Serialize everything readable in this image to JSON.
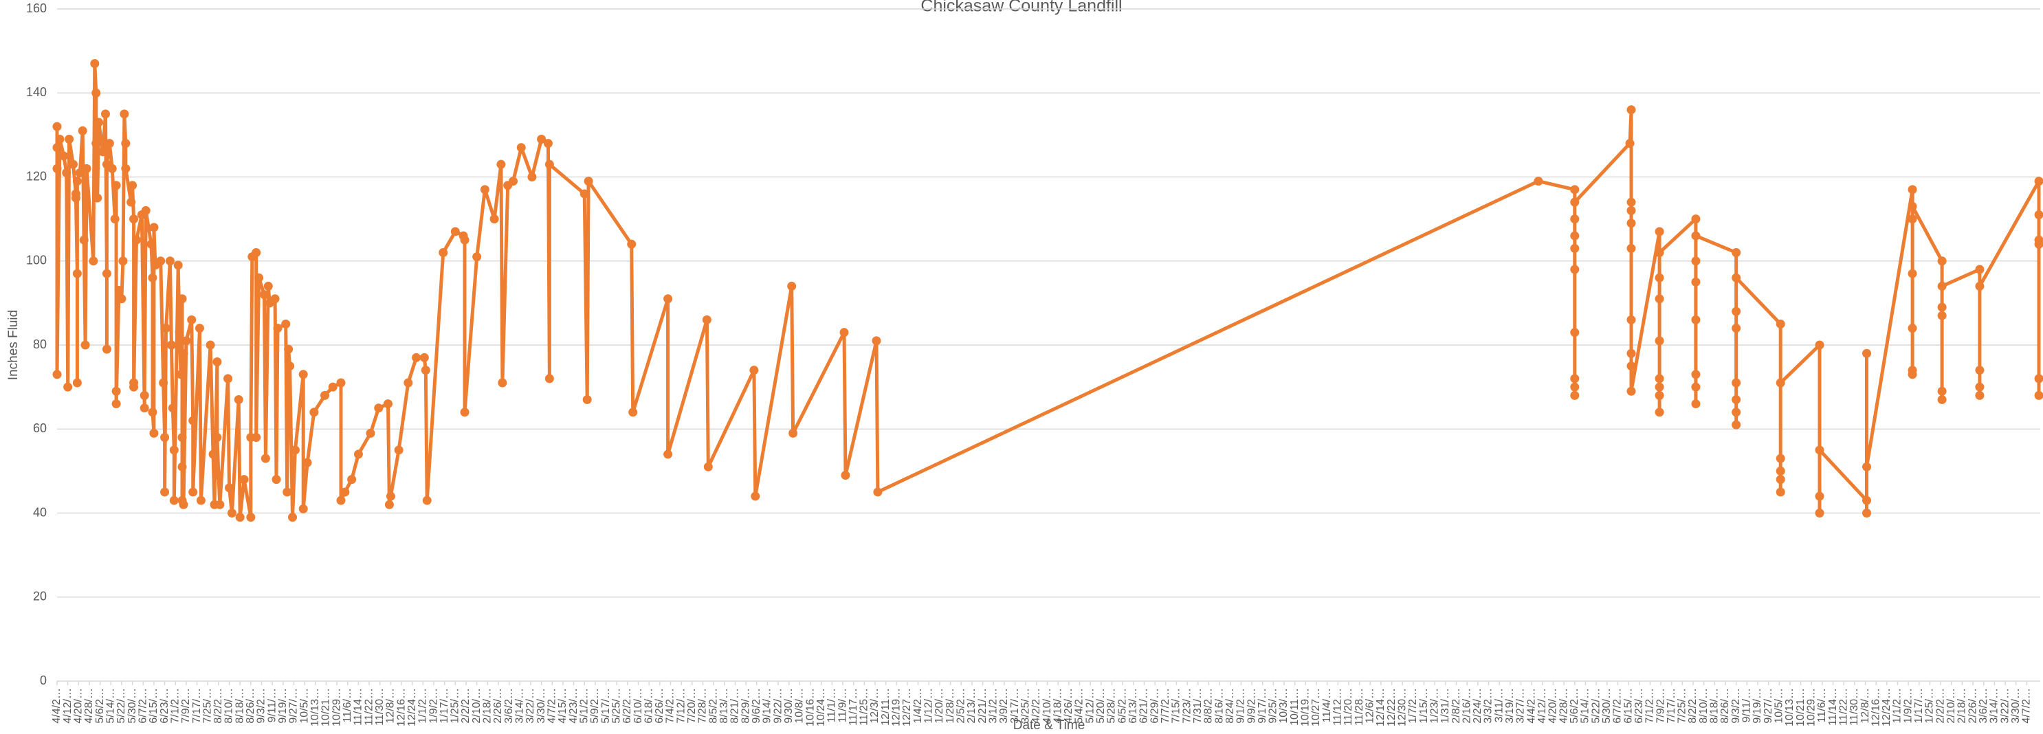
{
  "chart_data": {
    "type": "line",
    "title": "Chickasaw County Landfill",
    "y_label": "Inches Fluid",
    "x_label": "Date & Time",
    "color": "#ed7d31",
    "grid": true,
    "ylim": [
      0,
      160
    ],
    "yticks": [
      0,
      20,
      40,
      60,
      80,
      100,
      120,
      140,
      160
    ],
    "xlim": [
      0,
      1474
    ],
    "xticks": [
      {
        "value": 0,
        "label": "4/4/2…"
      },
      {
        "value": 8,
        "label": "4/12/…"
      },
      {
        "value": 16,
        "label": "4/20/…"
      },
      {
        "value": 24,
        "label": "4/28/…"
      },
      {
        "value": 32,
        "label": "5/6/2…"
      },
      {
        "value": 40,
        "label": "5/14/…"
      },
      {
        "value": 48,
        "label": "5/22/…"
      },
      {
        "value": 56,
        "label": "5/30/…"
      },
      {
        "value": 64,
        "label": "6/7/2…"
      },
      {
        "value": 72,
        "label": "6/15/…"
      },
      {
        "value": 80,
        "label": "6/23/…"
      },
      {
        "value": 88,
        "label": "7/1/2…"
      },
      {
        "value": 96,
        "label": "7/9/2…"
      },
      {
        "value": 104,
        "label": "7/17/…"
      },
      {
        "value": 112,
        "label": "7/25/…"
      },
      {
        "value": 120,
        "label": "8/2/2…"
      },
      {
        "value": 128,
        "label": "8/10/…"
      },
      {
        "value": 136,
        "label": "8/18/…"
      },
      {
        "value": 144,
        "label": "8/26/…"
      },
      {
        "value": 152,
        "label": "9/3/2…"
      },
      {
        "value": 160,
        "label": "9/11/…"
      },
      {
        "value": 168,
        "label": "9/19/…"
      },
      {
        "value": 176,
        "label": "9/27/…"
      },
      {
        "value": 184,
        "label": "10/5/…"
      },
      {
        "value": 192,
        "label": "10/13…"
      },
      {
        "value": 200,
        "label": "10/21…"
      },
      {
        "value": 208,
        "label": "10/29…"
      },
      {
        "value": 216,
        "label": "11/6/…"
      },
      {
        "value": 224,
        "label": "11/14…"
      },
      {
        "value": 232,
        "label": "11/22…"
      },
      {
        "value": 240,
        "label": "11/30…"
      },
      {
        "value": 248,
        "label": "12/8/…"
      },
      {
        "value": 256,
        "label": "12/16…"
      },
      {
        "value": 264,
        "label": "12/24…"
      },
      {
        "value": 272,
        "label": "1/1/2…"
      },
      {
        "value": 280,
        "label": "1/9/2…"
      },
      {
        "value": 288,
        "label": "1/17/…"
      },
      {
        "value": 296,
        "label": "1/25/…"
      },
      {
        "value": 304,
        "label": "2/2/2…"
      },
      {
        "value": 312,
        "label": "2/10/…"
      },
      {
        "value": 320,
        "label": "2/18/…"
      },
      {
        "value": 328,
        "label": "2/26/…"
      },
      {
        "value": 336,
        "label": "3/6/2…"
      },
      {
        "value": 344,
        "label": "3/14/…"
      },
      {
        "value": 352,
        "label": "3/22/…"
      },
      {
        "value": 360,
        "label": "3/30/…"
      },
      {
        "value": 368,
        "label": "4/7/2…"
      },
      {
        "value": 376,
        "label": "4/15/…"
      },
      {
        "value": 384,
        "label": "4/23/…"
      },
      {
        "value": 392,
        "label": "5/1/2…"
      },
      {
        "value": 400,
        "label": "5/9/2…"
      },
      {
        "value": 408,
        "label": "5/17/…"
      },
      {
        "value": 416,
        "label": "5/25/…"
      },
      {
        "value": 424,
        "label": "6/2/2…"
      },
      {
        "value": 432,
        "label": "6/10/…"
      },
      {
        "value": 440,
        "label": "6/18/…"
      },
      {
        "value": 448,
        "label": "6/26/…"
      },
      {
        "value": 456,
        "label": "7/4/2…"
      },
      {
        "value": 464,
        "label": "7/12/…"
      },
      {
        "value": 472,
        "label": "7/20/…"
      },
      {
        "value": 480,
        "label": "7/28/…"
      },
      {
        "value": 488,
        "label": "8/5/2…"
      },
      {
        "value": 496,
        "label": "8/13/…"
      },
      {
        "value": 504,
        "label": "8/21/…"
      },
      {
        "value": 512,
        "label": "8/29/…"
      },
      {
        "value": 520,
        "label": "9/6/2…"
      },
      {
        "value": 528,
        "label": "9/14/…"
      },
      {
        "value": 536,
        "label": "9/22/…"
      },
      {
        "value": 544,
        "label": "9/30/…"
      },
      {
        "value": 552,
        "label": "10/8/…"
      },
      {
        "value": 560,
        "label": "10/16…"
      },
      {
        "value": 568,
        "label": "10/24…"
      },
      {
        "value": 576,
        "label": "11/1/…"
      },
      {
        "value": 584,
        "label": "11/9/…"
      },
      {
        "value": 592,
        "label": "11/17…"
      },
      {
        "value": 600,
        "label": "11/25…"
      },
      {
        "value": 608,
        "label": "12/3/…"
      },
      {
        "value": 616,
        "label": "12/11…"
      },
      {
        "value": 624,
        "label": "12/19…"
      },
      {
        "value": 632,
        "label": "12/27…"
      },
      {
        "value": 640,
        "label": "1/4/2…"
      },
      {
        "value": 648,
        "label": "1/12/…"
      },
      {
        "value": 656,
        "label": "1/20/…"
      },
      {
        "value": 664,
        "label": "1/28/…"
      },
      {
        "value": 672,
        "label": "2/5/2…"
      },
      {
        "value": 680,
        "label": "2/13/…"
      },
      {
        "value": 688,
        "label": "2/21/…"
      },
      {
        "value": 696,
        "label": "3/1/2…"
      },
      {
        "value": 704,
        "label": "3/9/2…"
      },
      {
        "value": 712,
        "label": "3/17/…"
      },
      {
        "value": 720,
        "label": "3/25/…"
      },
      {
        "value": 728,
        "label": "4/2/2…"
      },
      {
        "value": 736,
        "label": "4/10/…"
      },
      {
        "value": 744,
        "label": "4/18/…"
      },
      {
        "value": 752,
        "label": "4/26/…"
      },
      {
        "value": 760,
        "label": "5/4/2…"
      },
      {
        "value": 768,
        "label": "5/12/…"
      },
      {
        "value": 776,
        "label": "5/20/…"
      },
      {
        "value": 784,
        "label": "5/28/…"
      },
      {
        "value": 792,
        "label": "6/5/2…"
      },
      {
        "value": 800,
        "label": "6/13/…"
      },
      {
        "value": 808,
        "label": "6/21/…"
      },
      {
        "value": 816,
        "label": "6/29/…"
      },
      {
        "value": 824,
        "label": "7/7/2…"
      },
      {
        "value": 832,
        "label": "7/15/…"
      },
      {
        "value": 840,
        "label": "7/23/…"
      },
      {
        "value": 848,
        "label": "7/31/…"
      },
      {
        "value": 856,
        "label": "8/8/2…"
      },
      {
        "value": 864,
        "label": "8/16/…"
      },
      {
        "value": 872,
        "label": "8/24/…"
      },
      {
        "value": 880,
        "label": "9/1/2…"
      },
      {
        "value": 888,
        "label": "9/9/2…"
      },
      {
        "value": 896,
        "label": "9/17/…"
      },
      {
        "value": 904,
        "label": "9/25/…"
      },
      {
        "value": 912,
        "label": "10/3/…"
      },
      {
        "value": 920,
        "label": "10/11…"
      },
      {
        "value": 928,
        "label": "10/19…"
      },
      {
        "value": 936,
        "label": "10/27…"
      },
      {
        "value": 944,
        "label": "11/4/…"
      },
      {
        "value": 952,
        "label": "11/12…"
      },
      {
        "value": 960,
        "label": "11/20…"
      },
      {
        "value": 968,
        "label": "11/28…"
      },
      {
        "value": 976,
        "label": "12/6/…"
      },
      {
        "value": 984,
        "label": "12/14…"
      },
      {
        "value": 992,
        "label": "12/22…"
      },
      {
        "value": 1000,
        "label": "12/30…"
      },
      {
        "value": 1008,
        "label": "1/7/2…"
      },
      {
        "value": 1016,
        "label": "1/15/…"
      },
      {
        "value": 1024,
        "label": "1/23/…"
      },
      {
        "value": 1032,
        "label": "1/31/…"
      },
      {
        "value": 1040,
        "label": "2/8/2…"
      },
      {
        "value": 1048,
        "label": "2/16/…"
      },
      {
        "value": 1056,
        "label": "2/24/…"
      },
      {
        "value": 1064,
        "label": "3/3/2…"
      },
      {
        "value": 1072,
        "label": "3/11/…"
      },
      {
        "value": 1080,
        "label": "3/19/…"
      },
      {
        "value": 1088,
        "label": "3/27/…"
      },
      {
        "value": 1096,
        "label": "4/4/2…"
      },
      {
        "value": 1104,
        "label": "4/12/…"
      },
      {
        "value": 1112,
        "label": "4/20/…"
      },
      {
        "value": 1120,
        "label": "4/28/…"
      },
      {
        "value": 1128,
        "label": "5/6/2…"
      },
      {
        "value": 1136,
        "label": "5/14/…"
      },
      {
        "value": 1144,
        "label": "5/22/…"
      },
      {
        "value": 1152,
        "label": "5/30/…"
      },
      {
        "value": 1160,
        "label": "6/7/2…"
      },
      {
        "value": 1168,
        "label": "6/15/…"
      },
      {
        "value": 1176,
        "label": "6/23/…"
      },
      {
        "value": 1184,
        "label": "7/1/2…"
      },
      {
        "value": 1192,
        "label": "7/9/2…"
      },
      {
        "value": 1200,
        "label": "7/17/…"
      },
      {
        "value": 1208,
        "label": "7/25/…"
      },
      {
        "value": 1216,
        "label": "8/2/2…"
      },
      {
        "value": 1224,
        "label": "8/10/…"
      },
      {
        "value": 1232,
        "label": "8/18/…"
      },
      {
        "value": 1240,
        "label": "8/26/…"
      },
      {
        "value": 1248,
        "label": "9/3/2…"
      },
      {
        "value": 1256,
        "label": "9/11/…"
      },
      {
        "value": 1264,
        "label": "9/19/…"
      },
      {
        "value": 1272,
        "label": "9/27/…"
      },
      {
        "value": 1280,
        "label": "10/5/…"
      },
      {
        "value": 1288,
        "label": "10/13…"
      },
      {
        "value": 1296,
        "label": "10/21…"
      },
      {
        "value": 1304,
        "label": "10/29…"
      },
      {
        "value": 1312,
        "label": "11/6/…"
      },
      {
        "value": 1320,
        "label": "11/14…"
      },
      {
        "value": 1328,
        "label": "11/22…"
      },
      {
        "value": 1336,
        "label": "11/30…"
      },
      {
        "value": 1344,
        "label": "12/8/…"
      },
      {
        "value": 1352,
        "label": "12/16…"
      },
      {
        "value": 1360,
        "label": "12/24…"
      },
      {
        "value": 1368,
        "label": "1/1/2…"
      },
      {
        "value": 1376,
        "label": "1/9/2…"
      },
      {
        "value": 1384,
        "label": "1/17/…"
      },
      {
        "value": 1392,
        "label": "1/25/…"
      },
      {
        "value": 1400,
        "label": "2/2/2…"
      },
      {
        "value": 1408,
        "label": "2/10/…"
      },
      {
        "value": 1416,
        "label": "2/18/…"
      },
      {
        "value": 1424,
        "label": "2/26/…"
      },
      {
        "value": 1432,
        "label": "3/6/2…"
      },
      {
        "value": 1440,
        "label": "3/14/…"
      },
      {
        "value": 1448,
        "label": "3/22/…"
      },
      {
        "value": 1456,
        "label": "3/30/…"
      },
      {
        "value": 1464,
        "label": "4/7/2…"
      }
    ],
    "x": [
      0,
      0,
      0,
      0,
      2,
      5,
      7,
      8,
      9,
      12,
      14,
      14,
      15,
      15,
      15,
      17,
      19,
      20,
      21,
      22,
      27,
      28,
      29,
      29,
      30,
      31,
      34,
      36,
      37,
      37,
      37,
      39,
      41,
      43,
      44,
      44,
      44,
      46,
      48,
      49,
      50,
      51,
      51,
      55,
      56,
      57,
      57,
      57,
      59,
      63,
      65,
      65,
      66,
      70,
      71,
      71,
      72,
      72,
      73,
      77,
      79,
      80,
      80,
      81,
      84,
      85,
      86,
      87,
      87,
      90,
      91,
      92,
      93,
      93,
      93,
      93,
      94,
      94,
      96,
      100,
      101,
      101,
      106,
      107,
      114,
      116,
      117,
      119,
      119,
      120,
      121,
      127,
      128,
      130,
      135,
      136,
      139,
      144,
      144,
      145,
      148,
      148,
      150,
      154,
      155,
      157,
      158,
      162,
      163,
      164,
      170,
      171,
      172,
      173,
      175,
      177,
      183,
      183,
      186,
      191,
      199,
      205,
      211,
      211,
      214,
      219,
      224,
      233,
      239,
      246,
      247,
      248,
      254,
      261,
      267,
      273,
      274,
      275,
      287,
      296,
      302,
      303,
      303,
      312,
      318,
      325,
      330,
      331,
      335,
      339,
      345,
      353,
      360,
      365,
      366,
      366,
      392,
      394,
      395,
      427,
      428,
      454,
      454,
      483,
      484,
      518,
      519,
      546,
      547,
      585,
      586,
      609,
      610,
      1101,
      1128,
      1128,
      1128,
      1128,
      1128,
      1128,
      1128,
      1128,
      1128,
      1128,
      1169,
      1170,
      1170,
      1170,
      1170,
      1170,
      1170,
      1170,
      1170,
      1170,
      1191,
      1191,
      1191,
      1191,
      1191,
      1191,
      1191,
      1191,
      1191,
      1218,
      1218,
      1218,
      1218,
      1218,
      1218,
      1218,
      1218,
      1248,
      1248,
      1248,
      1248,
      1248,
      1248,
      1248,
      1248,
      1281,
      1281,
      1281,
      1281,
      1281,
      1281,
      1310,
      1310,
      1310,
      1310,
      1345,
      1345,
      1345,
      1345,
      1379,
      1379,
      1379,
      1379,
      1379,
      1379,
      1379,
      1401,
      1401,
      1401,
      1401,
      1401,
      1401,
      1429,
      1429,
      1429,
      1429,
      1429,
      1473,
      1473,
      1473,
      1473,
      1473,
      1473
    ],
    "values": [
      132,
      127,
      122,
      73,
      129,
      125,
      121,
      70,
      129,
      123,
      116,
      115,
      97,
      71,
      119,
      121,
      131,
      105,
      80,
      122,
      100,
      147,
      140,
      128,
      115,
      133,
      126,
      135,
      97,
      79,
      123,
      128,
      122,
      110,
      118,
      69,
      66,
      93,
      91,
      100,
      135,
      128,
      122,
      114,
      118,
      110,
      71,
      70,
      105,
      111,
      65,
      68,
      112,
      104,
      96,
      64,
      59,
      108,
      99,
      100,
      71,
      58,
      45,
      84,
      100,
      80,
      65,
      55,
      43,
      99,
      83,
      73,
      91,
      58,
      51,
      43,
      78,
      42,
      81,
      86,
      62,
      45,
      84,
      43,
      80,
      54,
      42,
      76,
      58,
      49,
      42,
      72,
      46,
      40,
      67,
      39,
      48,
      39,
      58,
      101,
      102,
      58,
      96,
      92,
      53,
      94,
      90,
      91,
      48,
      84,
      85,
      45,
      79,
      75,
      39,
      55,
      73,
      41,
      52,
      64,
      68,
      70,
      71,
      43,
      45,
      48,
      54,
      59,
      65,
      66,
      42,
      44,
      55,
      71,
      77,
      77,
      74,
      43,
      102,
      107,
      106,
      105,
      64,
      101,
      117,
      110,
      123,
      71,
      118,
      119,
      127,
      120,
      129,
      128,
      72,
      123,
      116,
      67,
      119,
      104,
      64,
      91,
      54,
      86,
      51,
      74,
      44,
      94,
      59,
      83,
      49,
      81,
      45,
      119,
      117,
      68,
      70,
      72,
      83,
      98,
      103,
      106,
      110,
      114,
      128,
      136,
      114,
      112,
      109,
      103,
      86,
      78,
      75,
      69,
      107,
      64,
      68,
      70,
      72,
      81,
      91,
      96,
      102,
      110,
      66,
      70,
      73,
      86,
      95,
      100,
      106,
      102,
      61,
      64,
      67,
      71,
      84,
      88,
      96,
      85,
      45,
      48,
      50,
      53,
      71,
      80,
      40,
      44,
      55,
      43,
      40,
      78,
      51,
      117,
      73,
      74,
      84,
      97,
      110,
      113,
      100,
      67,
      69,
      87,
      89,
      94,
      98,
      68,
      70,
      74,
      94,
      119,
      68,
      72,
      104,
      105,
      111
    ]
  }
}
